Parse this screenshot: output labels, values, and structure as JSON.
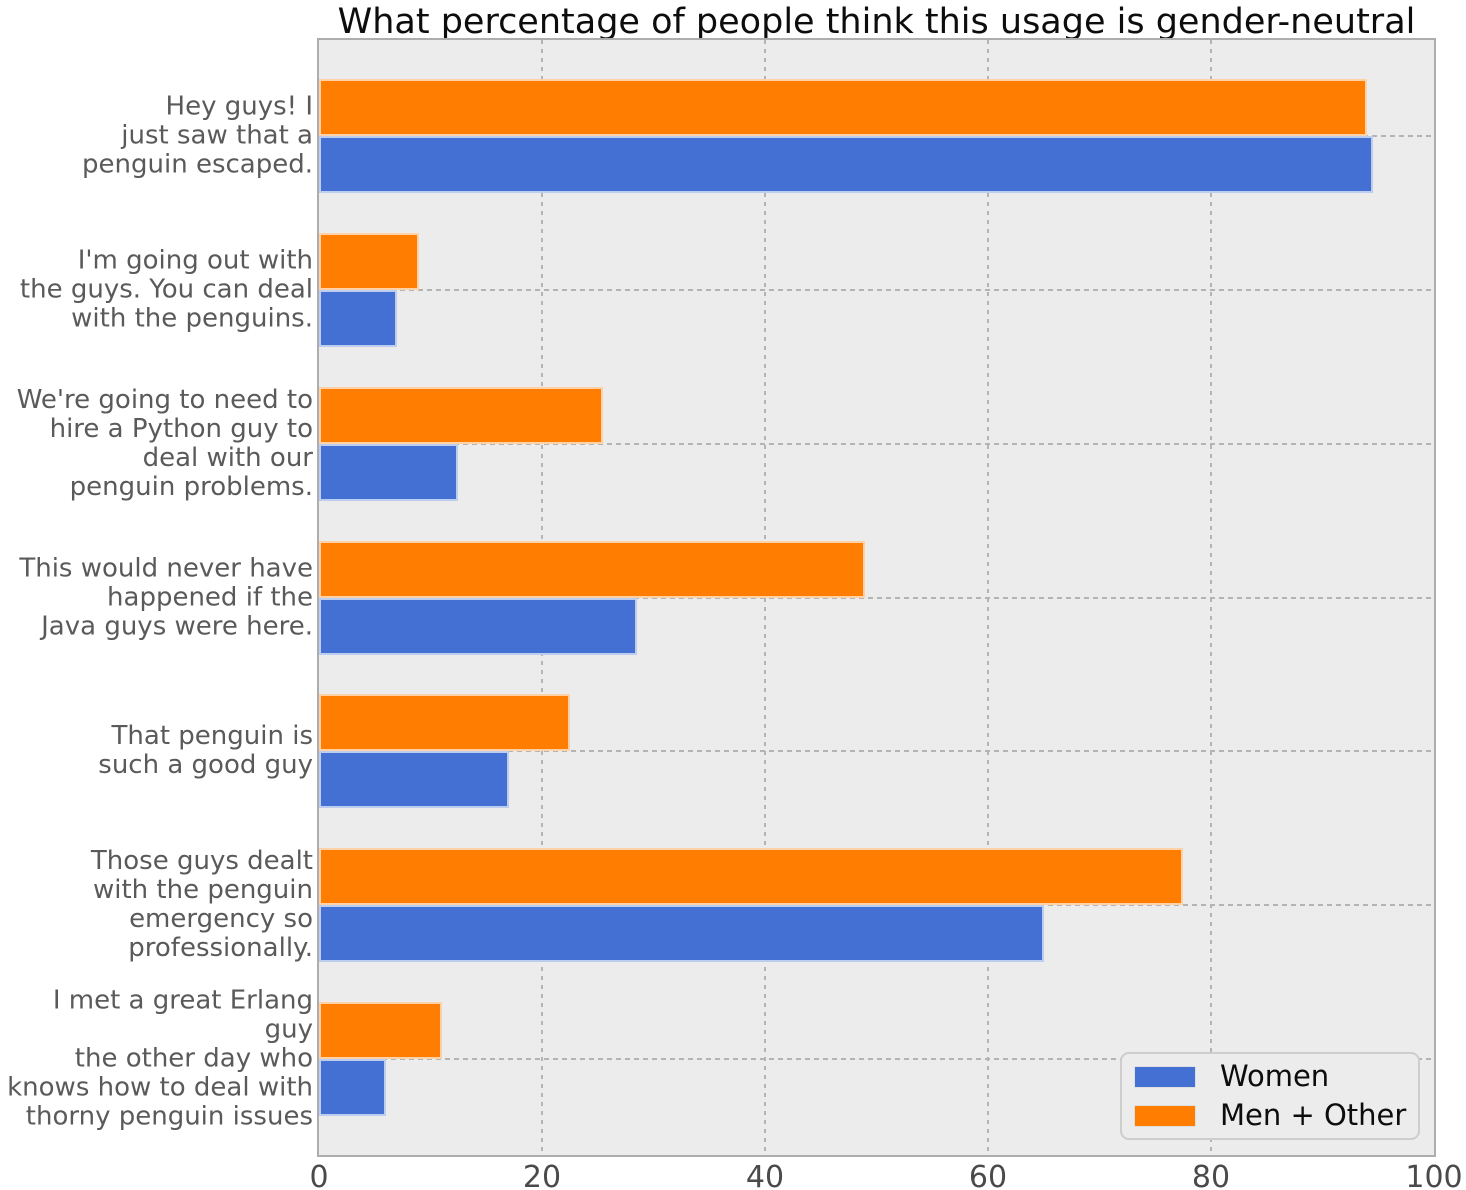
{
  "chart_data": {
    "type": "bar",
    "orientation": "horizontal",
    "title": "What percentage of people think this usage is gender-neutral",
    "categories": [
      "Hey guys! I\njust saw that a\npenguin escaped.",
      "I'm going out with\nthe guys. You can deal\nwith the penguins.",
      "We're going to need to\nhire a Python guy to\ndeal with our\npenguin problems.",
      "This would never have\nhappened if the\nJava guys were here.",
      "That penguin is\nsuch a good guy",
      "Those guys dealt\nwith the penguin\nemergency so\nprofessionally.",
      "I met a great Erlang guy\nthe other day who\nknows how to deal with\nthorny penguin issues"
    ],
    "series": [
      {
        "name": "Women",
        "color": "#4470d4",
        "values": [
          94.5,
          7,
          12.5,
          28.5,
          17,
          65,
          6
        ]
      },
      {
        "name": "Men + Other",
        "color": "#ff7d00",
        "values": [
          94,
          9,
          25.5,
          49,
          22.5,
          77.5,
          11
        ]
      }
    ],
    "xlabel": "",
    "ylabel": "",
    "xlim": [
      0,
      100
    ],
    "xticks": [
      0,
      20,
      40,
      60,
      80,
      100
    ],
    "grid": "dotted",
    "plot_background": "#ececec",
    "legend_position": "lower right"
  }
}
